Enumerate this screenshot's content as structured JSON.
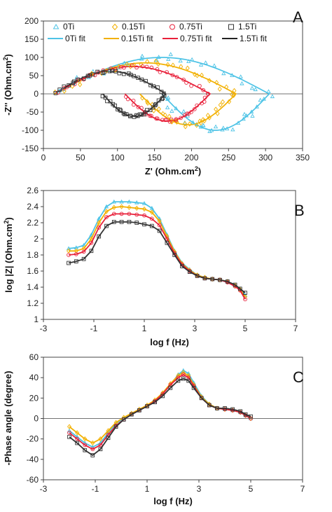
{
  "colors": {
    "0Ti": "#4dc3e6",
    "0.15Ti": "#f2b000",
    "0.75Ti": "#e8203a",
    "1.5Ti": "#333333"
  },
  "legend": {
    "markers": [
      "0Ti",
      "0.15Ti",
      "0.75Ti",
      "1.5Ti"
    ],
    "fits": [
      "0Ti fit",
      "0.15Ti fit",
      "0.75Ti fit",
      "1.5Ti fit"
    ]
  },
  "chart_data": [
    {
      "type": "scatter",
      "panel_label": "A",
      "xlabel_pre": "Z' (Ohm.cm",
      "xlabel_sup": "2",
      "xlabel_post": ")",
      "ylabel_pre": "-Z'' (Ohm.cm",
      "ylabel_sup": "2",
      "ylabel_post": ")",
      "xlim": [
        0,
        350
      ],
      "ylim": [
        -150,
        200
      ],
      "xticks": [
        0,
        50,
        100,
        150,
        200,
        250,
        300,
        350
      ],
      "yticks": [
        -150,
        -100,
        -50,
        0,
        50,
        100,
        150,
        200
      ],
      "series": [
        {
          "name": "0Ti",
          "marker": "triangle",
          "fit": {
            "x1": 15,
            "x2": 305,
            "cx": 150,
            "r": 100,
            "mid": 160
          }
        },
        {
          "name": "0.15Ti",
          "marker": "diamond",
          "fit": {
            "x1": 15,
            "x2": 260,
            "cx": 130,
            "r": 85,
            "mid": 130
          }
        },
        {
          "name": "0.75Ti",
          "marker": "circle",
          "fit": {
            "x1": 15,
            "x2": 225,
            "cx": 115,
            "r": 75,
            "mid": 110
          }
        },
        {
          "name": "1.5Ti",
          "marker": "square",
          "fit": {
            "x1": 15,
            "x2": 165,
            "cx": 90,
            "r": 62,
            "mid": 80
          }
        }
      ]
    },
    {
      "type": "line",
      "panel_label": "B",
      "xlabel": "log f (Hz)",
      "ylabel_pre": "log |Z| (Ohm.cm",
      "ylabel_sup": "2",
      "ylabel_post": ")",
      "xlim": [
        -3,
        7
      ],
      "ylim": [
        1,
        2.6
      ],
      "xticks": [
        -3,
        -1,
        1,
        3,
        5,
        7
      ],
      "yticks": [
        1,
        1.2,
        1.4,
        1.6,
        1.8,
        2,
        2.2,
        2.4,
        2.6
      ],
      "x": [
        -2,
        -1.7,
        -1.4,
        -1.1,
        -0.8,
        -0.5,
        -0.2,
        0.1,
        0.4,
        0.7,
        1,
        1.3,
        1.6,
        1.9,
        2.2,
        2.5,
        2.8,
        3.1,
        3.4,
        3.7,
        4,
        4.3,
        4.6,
        4.8,
        5
      ],
      "series": [
        {
          "name": "0Ti",
          "values": [
            1.88,
            1.89,
            1.92,
            2.05,
            2.25,
            2.4,
            2.46,
            2.46,
            2.46,
            2.45,
            2.44,
            2.38,
            2.25,
            2.05,
            1.85,
            1.7,
            1.62,
            1.55,
            1.52,
            1.5,
            1.49,
            1.47,
            1.42,
            1.38,
            1.3
          ]
        },
        {
          "name": "0.15Ti",
          "values": [
            1.85,
            1.85,
            1.88,
            2.0,
            2.2,
            2.34,
            2.39,
            2.4,
            2.39,
            2.38,
            2.37,
            2.33,
            2.22,
            2.03,
            1.84,
            1.69,
            1.61,
            1.55,
            1.52,
            1.5,
            1.49,
            1.47,
            1.42,
            1.37,
            1.28
          ]
        },
        {
          "name": "0.75Ti",
          "values": [
            1.8,
            1.81,
            1.84,
            1.95,
            2.14,
            2.27,
            2.31,
            2.31,
            2.31,
            2.3,
            2.29,
            2.25,
            2.17,
            2.0,
            1.82,
            1.68,
            1.6,
            1.54,
            1.51,
            1.5,
            1.49,
            1.46,
            1.41,
            1.36,
            1.25
          ]
        },
        {
          "name": "1.5Ti",
          "values": [
            1.7,
            1.72,
            1.75,
            1.85,
            2.03,
            2.16,
            2.21,
            2.21,
            2.21,
            2.2,
            2.18,
            2.16,
            2.1,
            1.95,
            1.8,
            1.66,
            1.59,
            1.54,
            1.51,
            1.5,
            1.49,
            1.47,
            1.43,
            1.38,
            1.33
          ]
        }
      ]
    },
    {
      "type": "line",
      "panel_label": "C",
      "xlabel": "log f (Hz)",
      "ylabel": "-Phase angle (degree)",
      "xlim": [
        -3,
        7
      ],
      "ylim": [
        -60,
        60
      ],
      "xticks": [
        -3,
        -1,
        1,
        3,
        5,
        7
      ],
      "yticks": [
        -60,
        -40,
        -20,
        0,
        20,
        40,
        60
      ],
      "x": [
        -2,
        -1.7,
        -1.4,
        -1.1,
        -0.8,
        -0.5,
        -0.2,
        0.1,
        0.4,
        0.7,
        1,
        1.3,
        1.6,
        1.9,
        2.2,
        2.4,
        2.6,
        2.8,
        3.1,
        3.4,
        3.7,
        4,
        4.3,
        4.6,
        4.8,
        5
      ],
      "series": [
        {
          "name": "0Ti",
          "values": [
            -12,
            -18,
            -24,
            -28,
            -24,
            -14,
            -5,
            0,
            4,
            8,
            12,
            17,
            24,
            33,
            43,
            47,
            44,
            35,
            22,
            14,
            10,
            9,
            8,
            6,
            3,
            0
          ]
        },
        {
          "name": "0.15Ti",
          "values": [
            -8,
            -14,
            -20,
            -24,
            -20,
            -12,
            -4,
            1,
            5,
            9,
            13,
            18,
            25,
            34,
            42,
            45,
            42,
            33,
            21,
            14,
            10,
            9,
            8,
            6,
            3,
            0
          ]
        },
        {
          "name": "0.75Ti",
          "values": [
            -14,
            -20,
            -26,
            -30,
            -26,
            -16,
            -7,
            -1,
            4,
            8,
            12,
            17,
            24,
            33,
            40,
            43,
            40,
            32,
            20,
            13,
            10,
            9,
            8,
            6,
            3,
            0
          ]
        },
        {
          "name": "1.5Ti",
          "values": [
            -18,
            -24,
            -31,
            -36,
            -30,
            -19,
            -8,
            -1,
            4,
            8,
            12,
            16,
            22,
            30,
            37,
            39,
            37,
            30,
            20,
            13,
            10,
            10,
            9,
            7,
            4,
            2
          ]
        }
      ]
    }
  ]
}
